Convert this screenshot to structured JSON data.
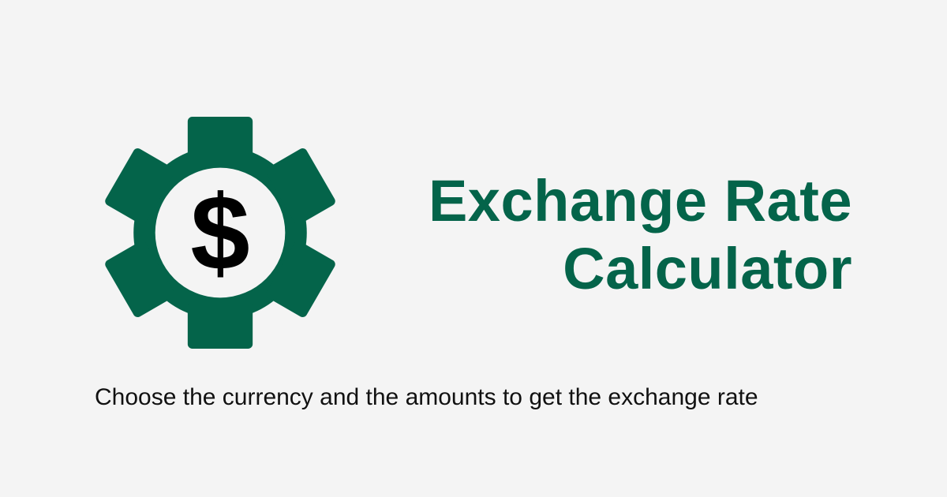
{
  "colors": {
    "background": "#f4f4f4",
    "brand": "#04644a",
    "text": "#111111",
    "symbol": "#000000"
  },
  "logo": {
    "icon": "gear-dollar-icon",
    "symbol": "$"
  },
  "title": {
    "line1": "Exchange Rate",
    "line2": "Calculator"
  },
  "subtitle": "Choose the currency and the amounts to get the exchange rate"
}
